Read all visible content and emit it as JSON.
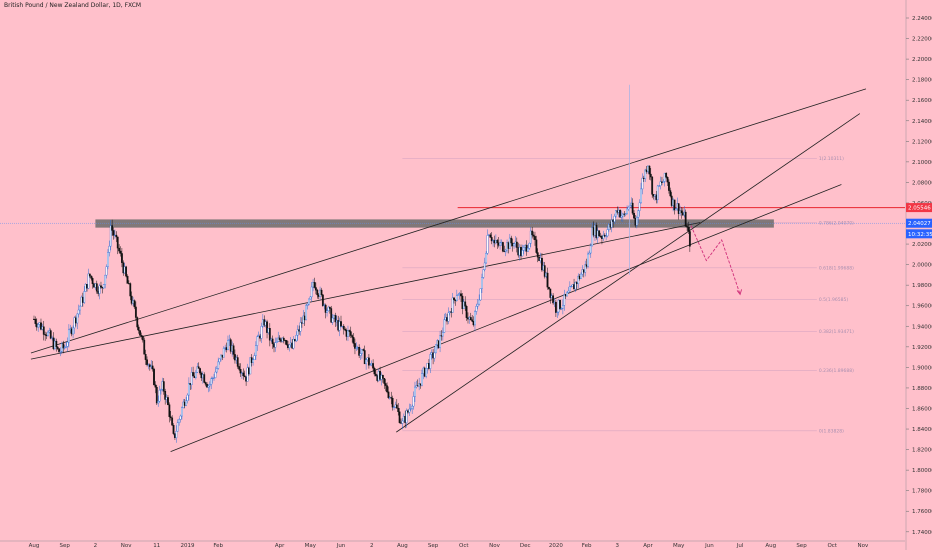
{
  "title": "British Pound / New Zealand Dollar, 1D, FXCM",
  "chart_data": {
    "type": "candlestick",
    "title": "British Pound / New Zealand Dollar, 1D, FXCM",
    "ylim": [
      1.74,
      2.25
    ],
    "y_ticks": [
      "2.24000",
      "2.22000",
      "2.20000",
      "2.18000",
      "2.16000",
      "2.14000",
      "2.12000",
      "2.10000",
      "2.08000",
      "2.06000",
      "2.04000",
      "2.02000",
      "2.00000",
      "1.98000",
      "1.96000",
      "1.94000",
      "1.92000",
      "1.90000",
      "1.88000",
      "1.86000",
      "1.84000",
      "1.82000",
      "1.80000",
      "1.78000",
      "1.76000",
      "1.74000"
    ],
    "x_ticks": [
      "Aug",
      "Sep",
      "2",
      "Nov",
      "11",
      "2019",
      "Feb",
      "Apr",
      "May",
      "Jun",
      "2",
      "Aug",
      "Sep",
      "Oct",
      "Nov",
      "Dec",
      "2020",
      "Feb",
      "3",
      "Apr",
      "May",
      "Jun",
      "Jul",
      "Aug",
      "Sep",
      "Oct",
      "Nov"
    ],
    "x_tick_months": [
      0,
      1,
      2,
      3,
      4,
      5,
      6,
      8,
      9,
      10,
      11,
      12,
      13,
      14,
      15,
      16,
      17,
      18,
      19,
      20,
      21,
      22,
      23,
      24,
      25,
      26,
      27
    ],
    "price_tags": [
      {
        "label": "2.05546",
        "value": 2.0555,
        "color": "#f23645"
      },
      {
        "label": "2.04027",
        "value": 2.0403,
        "color": "#2962ff"
      },
      {
        "label": "10:32:35",
        "value": 2.03,
        "color": "#2962ff"
      }
    ],
    "current_price": 2.0403,
    "resistance_line": {
      "value": 2.0555,
      "start_month": 13.8
    },
    "key_zone": {
      "low": 2.036,
      "high": 2.044,
      "start_month": 2.0,
      "end_month": 24.1
    },
    "fib_levels": [
      {
        "label": "1(2.10311)",
        "value": 2.1031
      },
      {
        "label": "0.786(2.04070)",
        "value": 2.0407
      },
      {
        "label": "0.618(1.99688)",
        "value": 1.9969
      },
      {
        "label": "0.5(1.96585)",
        "value": 1.9659
      },
      {
        "label": "0.382(1.93471)",
        "value": 1.9347
      },
      {
        "label": "0.236(1.89688)",
        "value": 1.8969
      },
      {
        "label": "0(1.83828)",
        "value": 1.8383
      }
    ],
    "trendlines": [
      {
        "from": [
          -0.1,
          1.914
        ],
        "to": [
          27.1,
          2.171
        ]
      },
      {
        "from": [
          -0.1,
          1.908
        ],
        "to": [
          21.7,
          2.041
        ]
      },
      {
        "from": [
          4.45,
          1.818
        ],
        "to": [
          26.3,
          2.078
        ]
      },
      {
        "from": [
          11.8,
          1.837
        ],
        "to": [
          26.9,
          2.147
        ]
      }
    ],
    "projection": [
      [
        21.4,
        2.038
      ],
      [
        21.9,
        2.004
      ],
      [
        22.4,
        2.024
      ],
      [
        23.0,
        1.971
      ]
    ],
    "series": [
      {
        "month": 0.0,
        "close": 1.947
      },
      {
        "month": 0.4,
        "close": 1.935
      },
      {
        "month": 0.8,
        "close": 1.915
      },
      {
        "month": 1.0,
        "close": 1.92
      },
      {
        "month": 1.3,
        "close": 1.944
      },
      {
        "month": 1.6,
        "close": 1.968
      },
      {
        "month": 1.8,
        "close": 1.99
      },
      {
        "month": 2.0,
        "close": 1.98
      },
      {
        "month": 2.2,
        "close": 1.975
      },
      {
        "month": 2.4,
        "close": 2.004
      },
      {
        "month": 2.5,
        "close": 2.038
      },
      {
        "month": 2.8,
        "close": 2.01
      },
      {
        "month": 3.1,
        "close": 1.975
      },
      {
        "month": 3.4,
        "close": 1.94
      },
      {
        "month": 3.6,
        "close": 1.915
      },
      {
        "month": 3.9,
        "close": 1.89
      },
      {
        "month": 4.0,
        "close": 1.868
      },
      {
        "month": 4.2,
        "close": 1.882
      },
      {
        "month": 4.4,
        "close": 1.858
      },
      {
        "month": 4.55,
        "close": 1.83
      },
      {
        "month": 4.8,
        "close": 1.858
      },
      {
        "month": 5.1,
        "close": 1.888
      },
      {
        "month": 5.4,
        "close": 1.898
      },
      {
        "month": 5.7,
        "close": 1.882
      },
      {
        "month": 6.0,
        "close": 1.902
      },
      {
        "month": 6.3,
        "close": 1.925
      },
      {
        "month": 6.6,
        "close": 1.908
      },
      {
        "month": 6.9,
        "close": 1.89
      },
      {
        "month": 7.2,
        "close": 1.918
      },
      {
        "month": 7.5,
        "close": 1.945
      },
      {
        "month": 7.8,
        "close": 1.918
      },
      {
        "month": 8.1,
        "close": 1.932
      },
      {
        "month": 8.4,
        "close": 1.918
      },
      {
        "month": 8.7,
        "close": 1.942
      },
      {
        "month": 9.0,
        "close": 1.965
      },
      {
        "month": 9.1,
        "close": 1.985
      },
      {
        "month": 9.4,
        "close": 1.965
      },
      {
        "month": 9.7,
        "close": 1.948
      },
      {
        "month": 10.0,
        "close": 1.938
      },
      {
        "month": 10.3,
        "close": 1.932
      },
      {
        "month": 10.6,
        "close": 1.915
      },
      {
        "month": 10.9,
        "close": 1.905
      },
      {
        "month": 11.2,
        "close": 1.892
      },
      {
        "month": 11.5,
        "close": 1.878
      },
      {
        "month": 11.8,
        "close": 1.86
      },
      {
        "month": 12.0,
        "close": 1.845
      },
      {
        "month": 12.2,
        "close": 1.858
      },
      {
        "month": 12.4,
        "close": 1.875
      },
      {
        "month": 12.7,
        "close": 1.895
      },
      {
        "month": 13.0,
        "close": 1.912
      },
      {
        "month": 13.2,
        "close": 1.925
      },
      {
        "month": 13.4,
        "close": 1.945
      },
      {
        "month": 13.6,
        "close": 1.96
      },
      {
        "month": 13.8,
        "close": 1.975
      },
      {
        "month": 14.0,
        "close": 1.958
      },
      {
        "month": 14.3,
        "close": 1.94
      },
      {
        "month": 14.6,
        "close": 1.985
      },
      {
        "month": 14.8,
        "close": 2.035
      },
      {
        "month": 15.0,
        "close": 2.02
      },
      {
        "month": 15.3,
        "close": 2.018
      },
      {
        "month": 15.6,
        "close": 2.022
      },
      {
        "month": 15.9,
        "close": 2.01
      },
      {
        "month": 16.2,
        "close": 2.028
      },
      {
        "month": 16.5,
        "close": 2.005
      },
      {
        "month": 16.8,
        "close": 1.975
      },
      {
        "month": 17.0,
        "close": 1.958
      },
      {
        "month": 17.2,
        "close": 1.962
      },
      {
        "month": 17.5,
        "close": 1.975
      },
      {
        "month": 17.8,
        "close": 1.99
      },
      {
        "month": 18.0,
        "close": 2.0
      },
      {
        "month": 18.2,
        "close": 2.035
      },
      {
        "month": 18.5,
        "close": 2.028
      },
      {
        "month": 18.8,
        "close": 2.038
      },
      {
        "month": 19.0,
        "close": 2.055
      },
      {
        "month": 19.2,
        "close": 2.045
      },
      {
        "month": 19.4,
        "close": 2.06
      },
      {
        "month": 19.6,
        "close": 2.038
      },
      {
        "month": 19.8,
        "close": 2.08
      },
      {
        "month": 20.0,
        "close": 2.1
      },
      {
        "month": 20.2,
        "close": 2.062
      },
      {
        "month": 20.4,
        "close": 2.078
      },
      {
        "month": 20.6,
        "close": 2.085
      },
      {
        "month": 20.8,
        "close": 2.06
      },
      {
        "month": 21.0,
        "close": 2.055
      },
      {
        "month": 21.2,
        "close": 2.045
      },
      {
        "month": 21.3,
        "close": 2.03
      },
      {
        "month": 21.4,
        "close": 2.018
      }
    ]
  }
}
